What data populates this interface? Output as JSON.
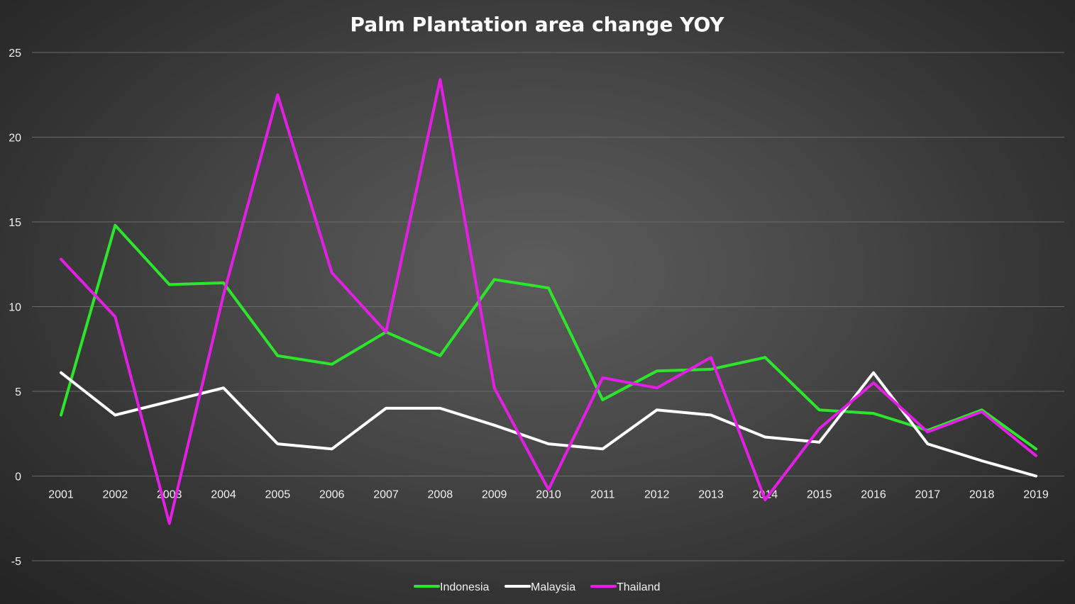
{
  "chart_data": {
    "type": "line",
    "title": "Palm Plantation area change YOY",
    "xlabel": "",
    "ylabel": "",
    "categories": [
      "2001",
      "2002",
      "2003",
      "2004",
      "2005",
      "2006",
      "2007",
      "2008",
      "2009",
      "2010",
      "2011",
      "2012",
      "2013",
      "2014",
      "2015",
      "2016",
      "2017",
      "2018",
      "2019"
    ],
    "ylim": [
      -5,
      25
    ],
    "yticks": [
      25,
      20,
      15,
      10,
      5,
      0,
      -5
    ],
    "grid": true,
    "legend_position": "bottom",
    "series": [
      {
        "name": "Indonesia",
        "color": "#2de52d",
        "values": [
          3.6,
          14.8,
          11.3,
          11.4,
          7.1,
          6.6,
          8.5,
          7.1,
          11.6,
          11.1,
          4.5,
          6.2,
          6.3,
          7.0,
          3.9,
          3.7,
          2.7,
          3.9,
          1.6
        ]
      },
      {
        "name": "Malaysia",
        "color": "#ffffff",
        "values": [
          6.1,
          3.6,
          4.4,
          5.2,
          1.9,
          1.6,
          4.0,
          4.0,
          3.0,
          1.9,
          1.6,
          3.9,
          3.6,
          2.3,
          2.0,
          6.1,
          1.9,
          0.9,
          0.0
        ]
      },
      {
        "name": "Thailand",
        "color": "#e21fe2",
        "values": [
          12.8,
          9.4,
          -2.8,
          10.7,
          22.5,
          12.0,
          8.5,
          23.4,
          5.2,
          -0.8,
          5.8,
          5.2,
          7.0,
          -1.4,
          2.8,
          5.5,
          2.6,
          3.8,
          1.2
        ]
      }
    ]
  }
}
